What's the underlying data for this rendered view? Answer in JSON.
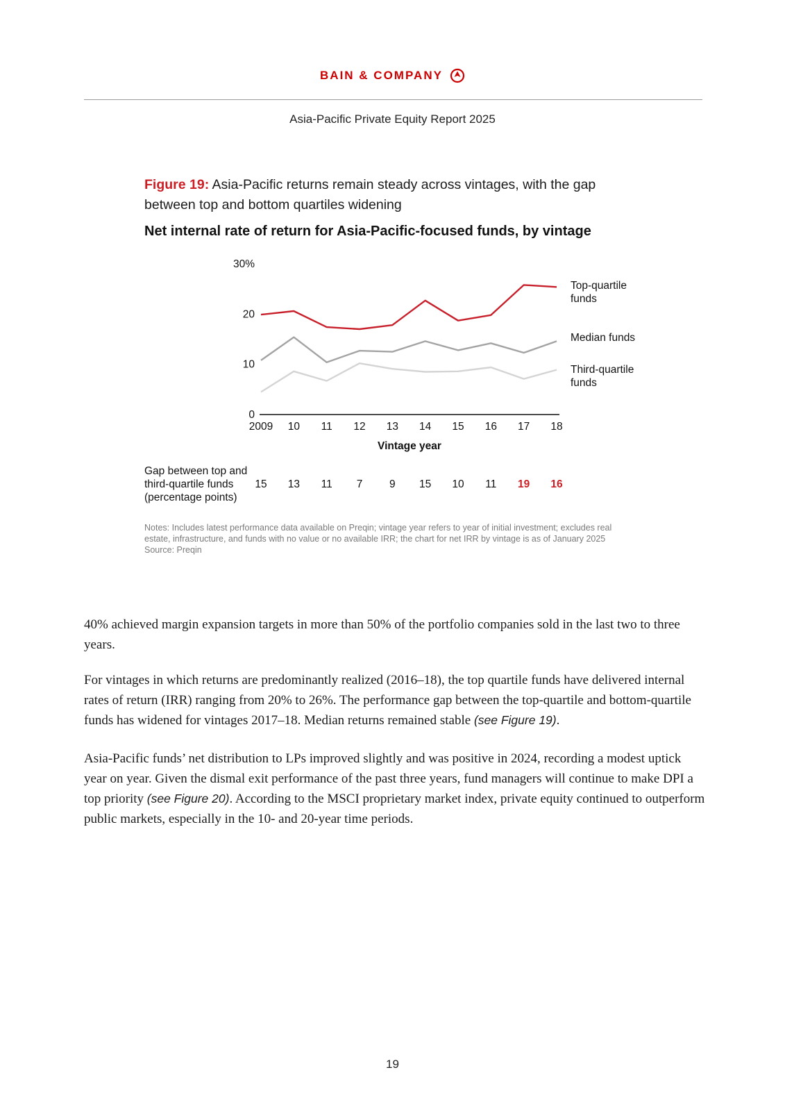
{
  "header": {
    "brand": "BAIN & COMPANY",
    "report_title": "Asia-Pacific Private Equity Report 2025"
  },
  "figure": {
    "label": "Figure 19:",
    "caption": "Asia-Pacific returns remain steady across vintages, with the gap between top and bottom quartiles widening",
    "gap_label": "Gap between top and third-quartile funds (percentage points)",
    "gap_values": [
      "15",
      "13",
      "11",
      "7",
      "9",
      "15",
      "10",
      "11",
      "19",
      "16"
    ],
    "gap_highlight": [
      false,
      false,
      false,
      false,
      false,
      false,
      false,
      false,
      true,
      true
    ],
    "notes": "Notes: Includes latest performance data available on Preqin; vintage year refers to year of initial investment; excludes real estate, infrastructure, and funds with no value or no available IRR; the chart for net IRR by vintage is as of January 2025",
    "source": "Source: Preqin"
  },
  "chart_data": {
    "type": "line",
    "title": "Net internal rate of return for Asia-Pacific-focused funds, by vintage",
    "xlabel": "Vintage year",
    "ylabel": "",
    "x": [
      "2009",
      "10",
      "11",
      "12",
      "13",
      "14",
      "15",
      "16",
      "17",
      "18"
    ],
    "ylim": [
      0,
      30
    ],
    "y_ticks": [
      "0",
      "10",
      "20",
      "30%"
    ],
    "y_tick_values": [
      0,
      10,
      20,
      30
    ],
    "grid": false,
    "legend": "right, end of lines",
    "series": [
      {
        "name": "Top-quartile funds",
        "color": "#c8202b",
        "values": [
          19.9,
          20.6,
          17.4,
          17.0,
          17.8,
          22.7,
          18.7,
          19.8,
          25.8,
          25.4
        ]
      },
      {
        "name": "Median funds",
        "color": "#a3a3a3",
        "values": [
          10.8,
          15.4,
          10.4,
          12.7,
          12.5,
          14.6,
          12.8,
          14.2,
          12.3,
          14.6
        ]
      },
      {
        "name": "Third-quartile funds",
        "color": "#d4d4d4",
        "values": [
          4.5,
          8.6,
          6.7,
          10.2,
          9.1,
          8.5,
          8.6,
          9.4,
          7.1,
          8.9
        ]
      }
    ]
  },
  "body": {
    "p1": "40% achieved margin expansion targets in more than 50% of the portfolio companies sold in the last two to three years.",
    "p2_a": "For vintages in which returns are predominantly realized (2016–18), the top quartile funds have delivered internal rates of return (IRR) ranging from 20% to 26%. The performance gap between the top-quartile and bottom-quartile funds has widened for vintages 2017–18. Median returns remained stable ",
    "p2_ref": "(see Figure 19)",
    "p2_b": ".",
    "p3_a": "Asia-Pacific funds’ net distribution to LPs improved slightly and was positive in 2024, recording a modest uptick year on year. Given the dismal exit performance of the past three years, fund managers will continue to make DPI a top priority ",
    "p3_ref": "(see Figure 20)",
    "p3_b": ". According to the MSCI proprietary market index, private equity continued to outperform public markets, especially in the 10- and 20-year time periods."
  },
  "footer": {
    "page_number": "19"
  }
}
